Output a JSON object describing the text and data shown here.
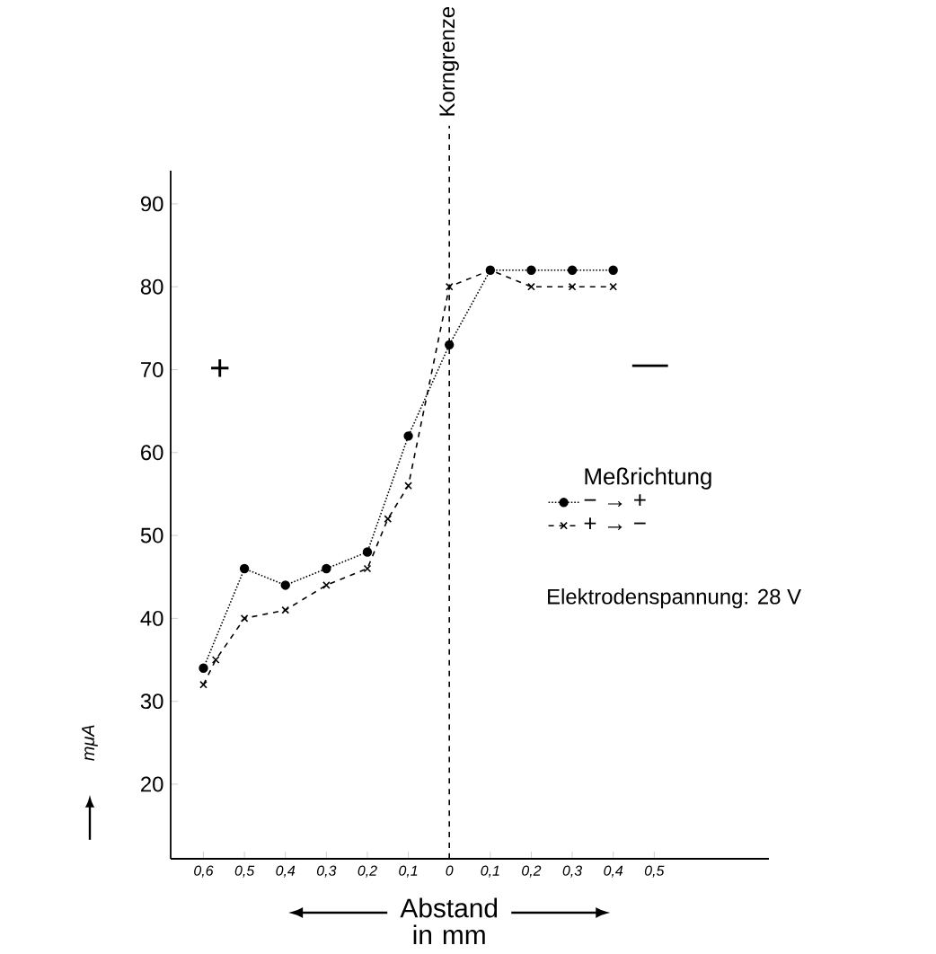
{
  "chart_data": {
    "type": "line",
    "xlabel": "Abstand in mm",
    "ylabel": "mμA",
    "legend_title": "Meßrichtung",
    "series": [
      {
        "name": "− → +",
        "color": "#000000",
        "line_style": "dotted",
        "marker": "circle",
        "x": [
          -0.6,
          -0.5,
          -0.4,
          -0.3,
          -0.2,
          -0.1,
          0,
          0.1,
          0.2,
          0.3,
          0.4
        ],
        "values": [
          34,
          46,
          44,
          46,
          48,
          62,
          73,
          82,
          82,
          82,
          82
        ]
      },
      {
        "name": "+ → −",
        "color": "#000000",
        "line_style": "dashed",
        "marker": "cross",
        "x": [
          -0.6,
          -0.57,
          -0.5,
          -0.4,
          -0.3,
          -0.2,
          -0.15,
          -0.1,
          0,
          0.1,
          0.2,
          0.3,
          0.4
        ],
        "values": [
          32,
          35,
          40,
          41,
          44,
          46,
          52,
          56,
          80,
          82,
          80,
          80,
          80
        ]
      }
    ],
    "xlim": [
      -0.68,
      0.78
    ],
    "ylim": [
      11,
      94
    ],
    "xticks": [
      {
        "value": -0.6,
        "label": "0,6"
      },
      {
        "value": -0.5,
        "label": "0,5"
      },
      {
        "value": -0.4,
        "label": "0,4"
      },
      {
        "value": -0.3,
        "label": "0,3"
      },
      {
        "value": -0.2,
        "label": "0,2"
      },
      {
        "value": -0.1,
        "label": "0,1"
      },
      0,
      {
        "value": 0.1,
        "label": "0,1"
      },
      {
        "value": 0.2,
        "label": "0,2"
      },
      {
        "value": 0.3,
        "label": "0,3"
      },
      {
        "value": 0.4,
        "label": "0,4"
      },
      {
        "value": 0.5,
        "label": "0,5"
      }
    ],
    "yticks": [
      20,
      30,
      40,
      50,
      60,
      70,
      80,
      90
    ],
    "ref_lines": [
      {
        "axis": "x",
        "value": 0,
        "label": "Korngrenze",
        "line_style": "dashed"
      }
    ],
    "annotations": [
      "+",
      "—",
      "Elektrodenspannung: 28 V"
    ],
    "legend": "right",
    "grid": false
  }
}
